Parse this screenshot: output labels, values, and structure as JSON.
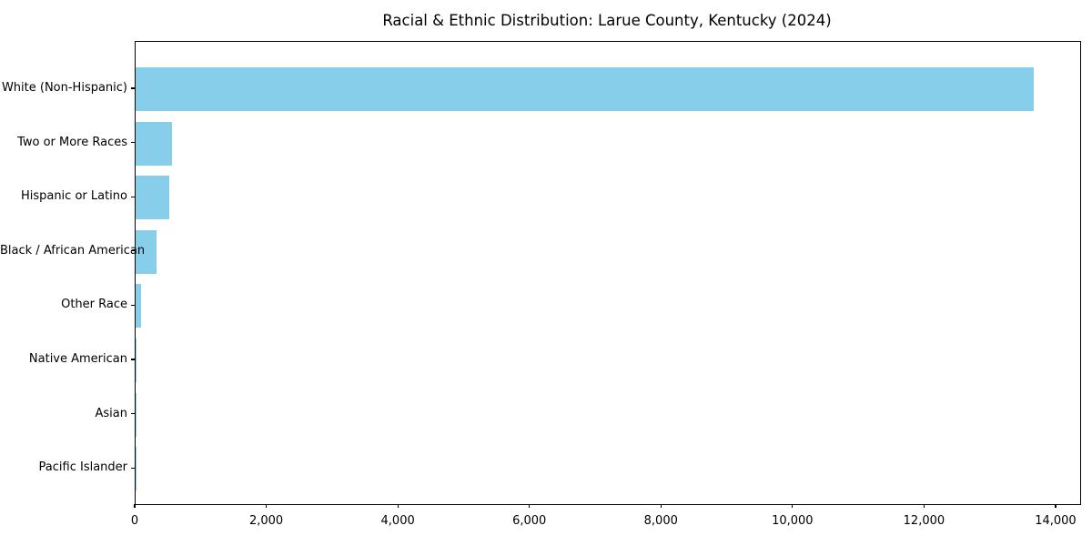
{
  "chart_data": {
    "type": "bar",
    "orientation": "horizontal",
    "title": "Racial & Ethnic Distribution: Larue County, Kentucky (2024)",
    "categories": [
      "White (Non-Hispanic)",
      "Two or More Races",
      "Hispanic or Latino",
      "Black / African American",
      "Other Race",
      "Native American",
      "Asian",
      "Pacific Islander"
    ],
    "values": [
      13650,
      550,
      515,
      320,
      85,
      15,
      10,
      5
    ],
    "xlabel": "",
    "ylabel": "",
    "xlim": [
      0,
      14360
    ],
    "x_ticks": [
      0,
      2000,
      4000,
      6000,
      8000,
      10000,
      12000,
      14000
    ],
    "x_tick_labels": [
      "0",
      "2,000",
      "4,000",
      "6,000",
      "8,000",
      "10,000",
      "12,000",
      "14,000"
    ],
    "grid": false,
    "legend": false,
    "bar_color": "#87CEEB",
    "axis_color": "#000000",
    "text_color": "#000000",
    "background_color": "#ffffff"
  }
}
